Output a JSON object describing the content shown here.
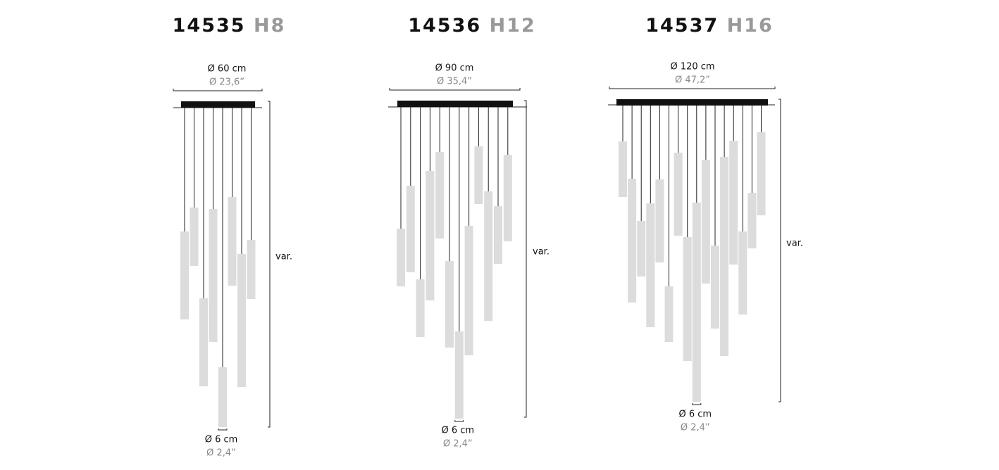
{
  "products": [
    {
      "model": "14535",
      "version": "H8",
      "diameter_cm": "Ø 60 cm",
      "diameter_in": "Ø 23,6”",
      "tube_cm": "Ø 6 cm",
      "tube_in": "Ø 2,4”",
      "height": "var."
    },
    {
      "model": "14536",
      "version": "H12",
      "diameter_cm": "Ø 90 cm",
      "diameter_in": "Ø 35,4”",
      "tube_cm": "Ø 6 cm",
      "tube_in": "Ø 2,4”",
      "height": "var."
    },
    {
      "model": "14537",
      "version": "H16",
      "diameter_cm": "Ø 120 cm",
      "diameter_in": "Ø 47,2”",
      "tube_cm": "Ø 6 cm",
      "tube_in": "Ø 2,4”",
      "height": "var."
    }
  ]
}
